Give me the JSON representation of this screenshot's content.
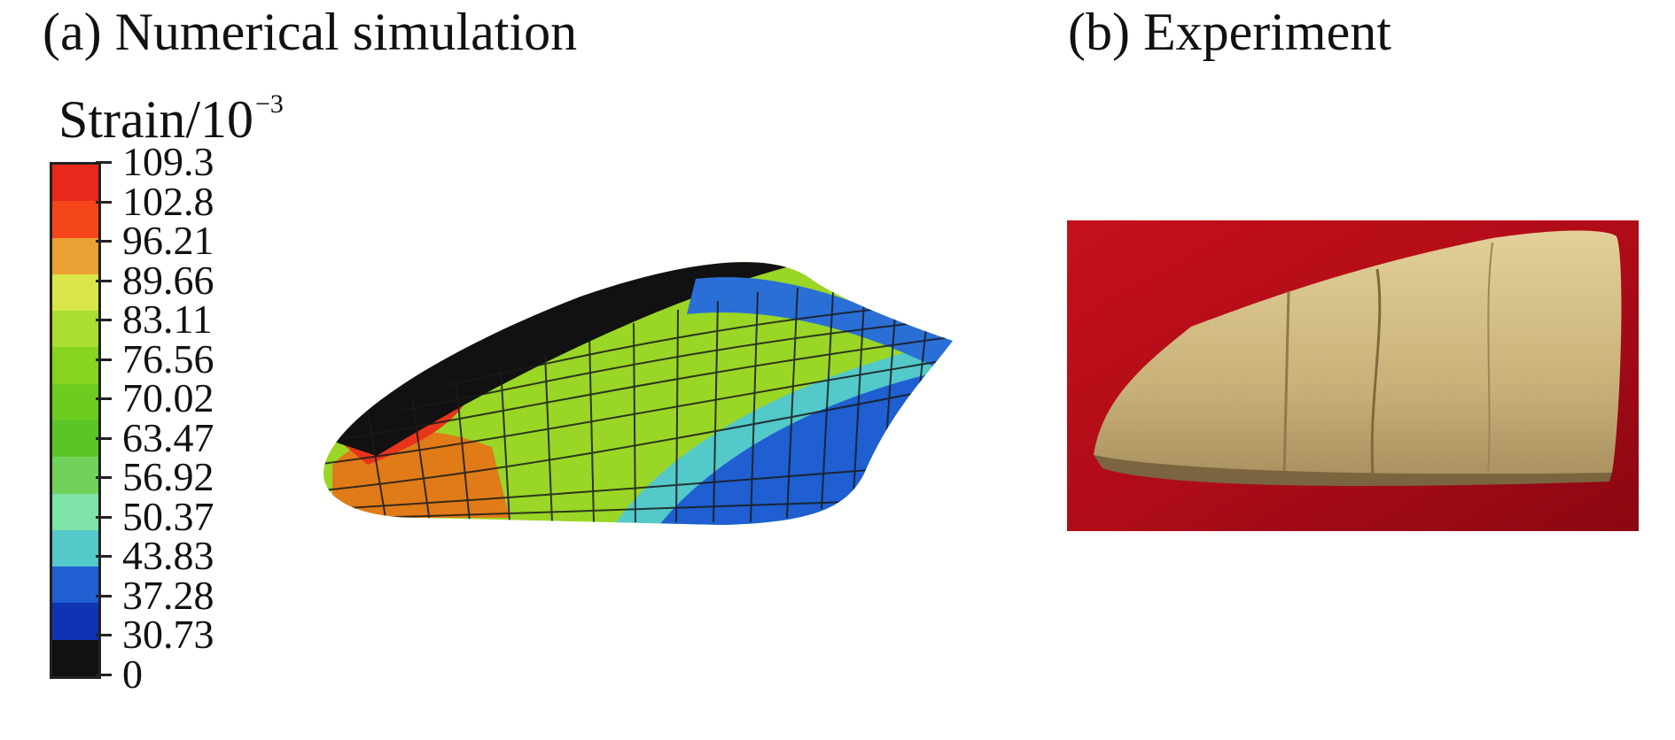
{
  "panel_a": {
    "label": "(a) Numerical simulation",
    "colorbar": {
      "title": "Strain/10",
      "title_exponent": "−3",
      "ticks": [
        "109.3",
        "102.8",
        "96.21",
        "89.66",
        "83.11",
        "76.56",
        "70.02",
        "63.47",
        "56.92",
        "50.37",
        "43.83",
        "37.28",
        "30.73",
        "0"
      ],
      "colors": [
        "#e8281b",
        "#f5461b",
        "#eaa032",
        "#d9e64a",
        "#a9de2f",
        "#86d41c",
        "#6ccc1f",
        "#5bc528",
        "#71d25b",
        "#7de3a6",
        "#53c9c9",
        "#1f5fd1",
        "#0f33b4",
        "#111111"
      ]
    }
  },
  "panel_b": {
    "label": "(b) Experiment"
  }
}
